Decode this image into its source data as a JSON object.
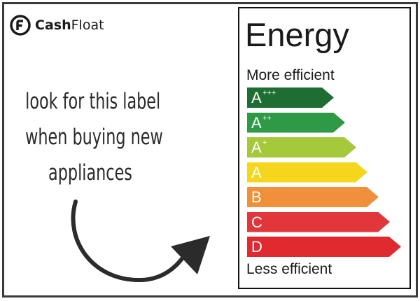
{
  "brand": {
    "name_bold": "Cash",
    "name_light": "Float",
    "logo_icon": "cashfloat-logo-icon"
  },
  "hint": {
    "lines": [
      "look for this label",
      "when buying new",
      "appliances"
    ]
  },
  "energy_label": {
    "title": "Energy",
    "top_caption": "More efficient",
    "bottom_caption": "Less efficient",
    "classes": [
      {
        "letter": "A",
        "plus": "+++",
        "color": "#1e6e34",
        "level": 1
      },
      {
        "letter": "A",
        "plus": "++",
        "color": "#2e9a45",
        "level": 2
      },
      {
        "letter": "A",
        "plus": "+",
        "color": "#a5c93a",
        "level": 3
      },
      {
        "letter": "A",
        "plus": "",
        "color": "#f6d61c",
        "level": 4
      },
      {
        "letter": "B",
        "plus": "",
        "color": "#f0903a",
        "level": 5
      },
      {
        "letter": "C",
        "plus": "",
        "color": "#e2373a",
        "level": 6
      },
      {
        "letter": "D",
        "plus": "",
        "color": "#e12a2f",
        "level": 7
      }
    ]
  },
  "colors": {
    "frame": "#3a3a3a",
    "text": "#2a2a2a",
    "arrow": "#2b2b2b"
  }
}
